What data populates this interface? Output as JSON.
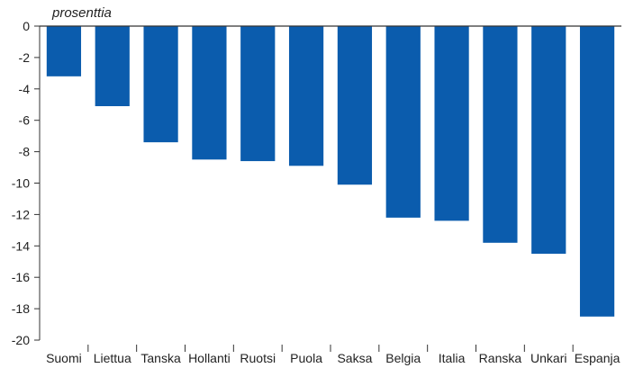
{
  "chart_data": {
    "type": "bar",
    "unit_label": "prosenttia",
    "categories": [
      "Suomi",
      "Liettua",
      "Tanska",
      "Hollanti",
      "Ruotsi",
      "Puola",
      "Saksa",
      "Belgia",
      "Italia",
      "Ranska",
      "Unkari",
      "Espanja"
    ],
    "values": [
      -3.2,
      -5.1,
      -7.4,
      -8.5,
      -8.6,
      -8.9,
      -10.1,
      -12.2,
      -12.4,
      -13.8,
      -14.5,
      -18.5
    ],
    "ylim": [
      -20,
      0
    ],
    "yticks": [
      0,
      -2,
      -4,
      -6,
      -8,
      -10,
      -12,
      -14,
      -16,
      -18,
      -20
    ],
    "grid": false,
    "bar_color": "#0b5cad"
  }
}
